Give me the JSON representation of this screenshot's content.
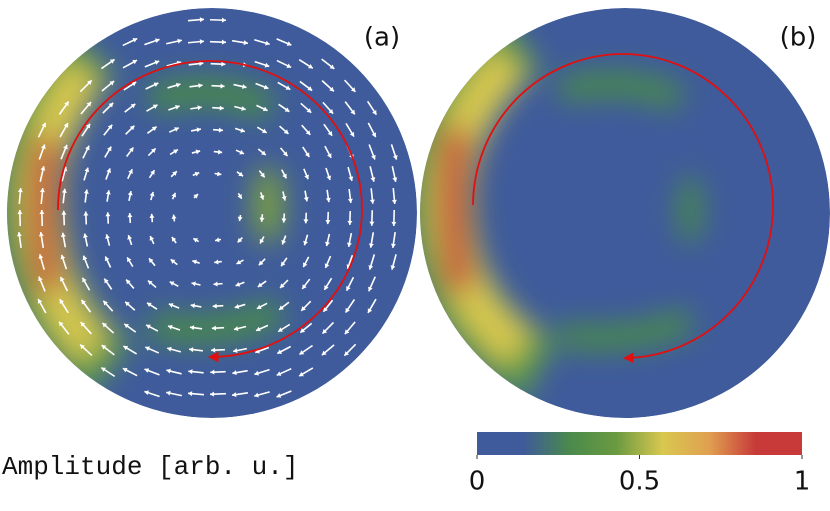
{
  "chart_data": {
    "type": "heatmap",
    "panels": [
      "(a)",
      "(b)"
    ],
    "colorbar": {
      "label": "Amplitude [arb. u.]",
      "lim": [
        0,
        1
      ],
      "ticks": [
        0,
        0.5,
        1
      ],
      "colors": [
        "#3f5b9b",
        "#3f5b9b",
        "#4a8a4c",
        "#6a9a40",
        "#d8c850",
        "#e0a050",
        "#c83a3a",
        "#c83a3a"
      ]
    }
  }
}
